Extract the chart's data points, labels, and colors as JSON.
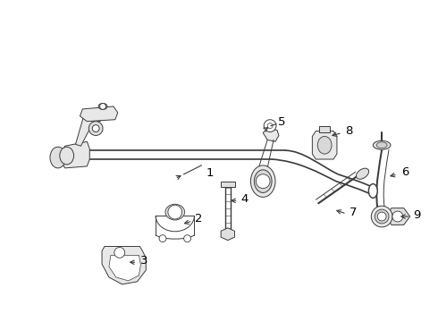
{
  "background_color": "#ffffff",
  "line_color": "#3a3a3a",
  "fig_width": 4.9,
  "fig_height": 3.6,
  "dpi": 100
}
